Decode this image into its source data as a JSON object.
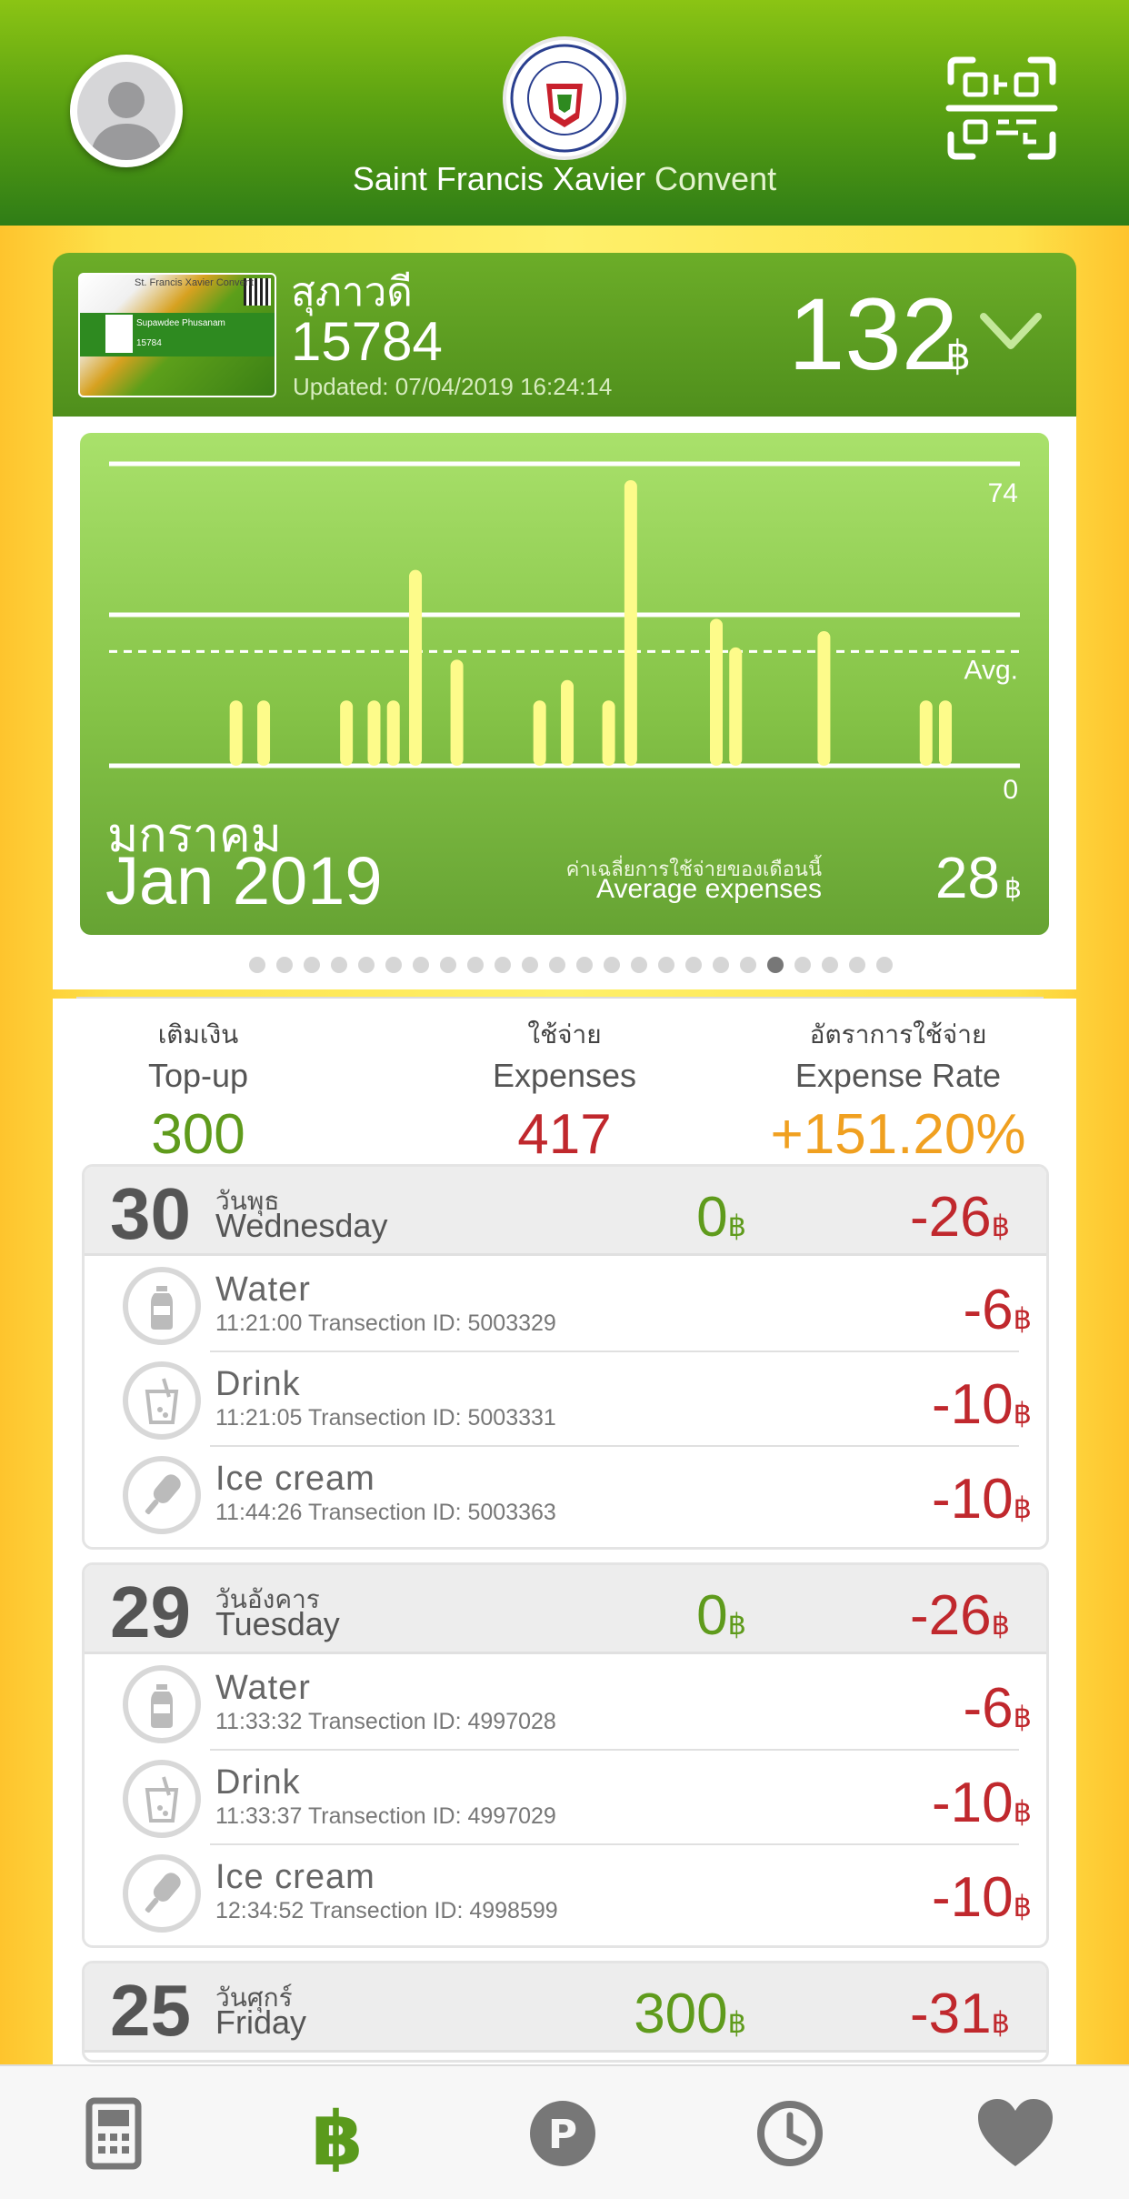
{
  "header": {
    "title_main": "Saint Francis Xavier",
    "title_sub": "Convent",
    "logo_text": "ST. FRANCIS XAVIER CONVENT SCHOOL · DUSIT BANGKOK"
  },
  "card": {
    "name": "สุภาวดี",
    "student_id": "15784",
    "updated": "Updated: 07/04/2019 16:24:14",
    "balance": "132",
    "currency": "฿",
    "thumb": {
      "school": "St. Francis Xavier Convent",
      "holder": "Supawdee Phusanam",
      "number": "15784"
    }
  },
  "chart": {
    "month_th": "มกราคม",
    "month_en": "Jan 2019",
    "avg_label_th": "ค่าเฉลี่ยการใช้จ่ายของเดือนนี้",
    "avg_label_en": "Average expenses",
    "avg_value": "28",
    "currency": "฿",
    "page_count": 24,
    "active_page": 19
  },
  "chart_data": {
    "type": "bar",
    "ylim": [
      0,
      74
    ],
    "tick_labels": [
      "74",
      "Avg.",
      "0"
    ],
    "average": 28,
    "values": [
      16,
      16,
      16,
      16,
      16,
      48,
      26,
      16,
      21,
      16,
      70,
      36,
      29,
      33,
      16,
      16
    ],
    "colors": {
      "bar": "#fdfb8a",
      "grid": "#ffffff"
    }
  },
  "summary": {
    "topup_th": "เติมเงิน",
    "topup_en": "Top-up",
    "topup_value": "300",
    "expenses_th": "ใช้จ่าย",
    "expenses_en": "Expenses",
    "expenses_value": "417",
    "rate_th": "อัตราการใช้จ่าย",
    "rate_en": "Expense Rate",
    "rate_value": "+151.20%",
    "colors": {
      "topup": "#5f9b1c",
      "expenses": "#c0282d",
      "rate": "#f0a020"
    }
  },
  "days": [
    {
      "num": "30",
      "th": "วันพุธ",
      "en": "Wednesday",
      "in": "0",
      "out": "-26",
      "items": [
        {
          "name": "Water",
          "meta": "11:21:00 Transection ID: 5003329",
          "amount": "-6",
          "icon": "water-bottle-icon"
        },
        {
          "name": "Drink",
          "meta": "11:21:05 Transection ID: 5003331",
          "amount": "-10",
          "icon": "drink-cup-icon"
        },
        {
          "name": "Ice cream",
          "meta": "11:44:26 Transection ID: 5003363",
          "amount": "-10",
          "icon": "ice-cream-icon"
        }
      ]
    },
    {
      "num": "29",
      "th": "วันอังคาร",
      "en": "Tuesday",
      "in": "0",
      "out": "-26",
      "items": [
        {
          "name": "Water",
          "meta": "11:33:32 Transection ID: 4997028",
          "amount": "-6",
          "icon": "water-bottle-icon"
        },
        {
          "name": "Drink",
          "meta": "11:33:37 Transection ID: 4997029",
          "amount": "-10",
          "icon": "drink-cup-icon"
        },
        {
          "name": "Ice cream",
          "meta": "12:34:52 Transection ID: 4998599",
          "amount": "-10",
          "icon": "ice-cream-icon"
        }
      ]
    },
    {
      "num": "25",
      "th": "วันศุกร์",
      "en": "Friday",
      "in": "300",
      "out": "-31",
      "items": []
    }
  ],
  "currency": "฿",
  "tabs": [
    {
      "icon": "card-reader-icon",
      "active": false
    },
    {
      "icon": "baht-icon",
      "active": true
    },
    {
      "icon": "points-icon",
      "active": false
    },
    {
      "icon": "history-clock-icon",
      "active": false
    },
    {
      "icon": "heart-icon",
      "active": false
    }
  ]
}
